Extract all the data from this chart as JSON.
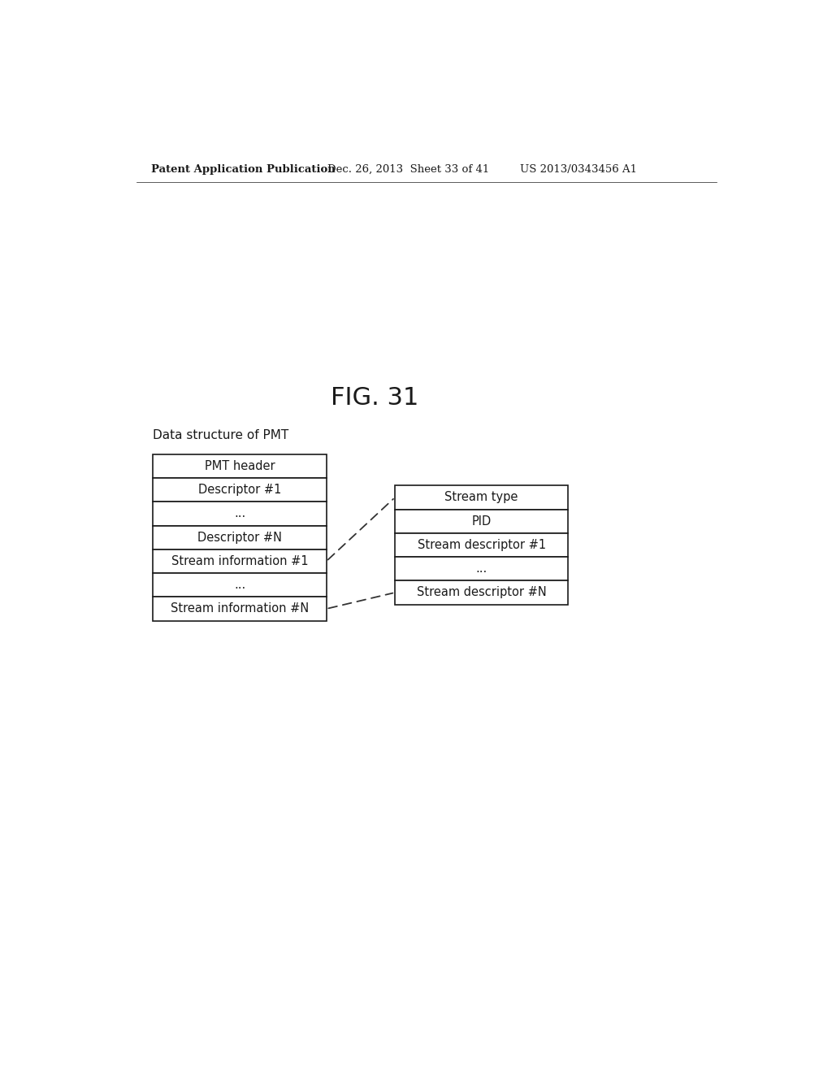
{
  "title": "FIG. 31",
  "subtitle": "Data structure of PMT",
  "header_text": "Patent Application Publication",
  "header_date": "Dec. 26, 2013  Sheet 33 of 41",
  "header_patent": "US 2013/0343456 A1",
  "left_box_rows": [
    "PMT header",
    "Descriptor #1",
    "...",
    "Descriptor #N",
    "Stream information #1",
    "...",
    "Stream information #N"
  ],
  "right_box_rows": [
    "Stream type",
    "PID",
    "Stream descriptor #1",
    "...",
    "Stream descriptor #N"
  ],
  "background_color": "#ffffff",
  "box_edge_color": "#1a1a1a",
  "text_color": "#1a1a1a",
  "arrow_color": "#333333"
}
